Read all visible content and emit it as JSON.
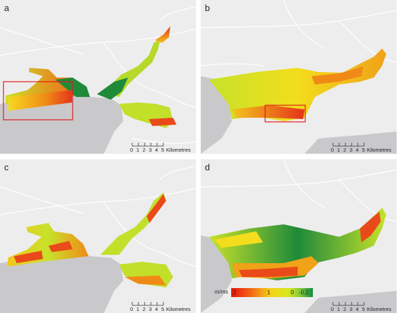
{
  "panels": [
    {
      "id": "a",
      "label": "a"
    },
    {
      "id": "b",
      "label": "b"
    },
    {
      "id": "c",
      "label": "c"
    },
    {
      "id": "d",
      "label": "d"
    }
  ],
  "scalebar": {
    "ticks": [
      "0",
      "1",
      "2",
      "3",
      "4",
      "5"
    ],
    "unit": "Kilometres"
  },
  "legend": {
    "unit": "m/ms",
    "labels": [
      "2",
      "1",
      "0",
      "-0.2"
    ],
    "colors": [
      "#e8140f",
      "#f3d21a",
      "#138a3e"
    ]
  },
  "colors": {
    "land": "#ededed",
    "sea": "#c9c9cc",
    "roads": "#ffffff",
    "highlight_box": "#e21c1c"
  }
}
